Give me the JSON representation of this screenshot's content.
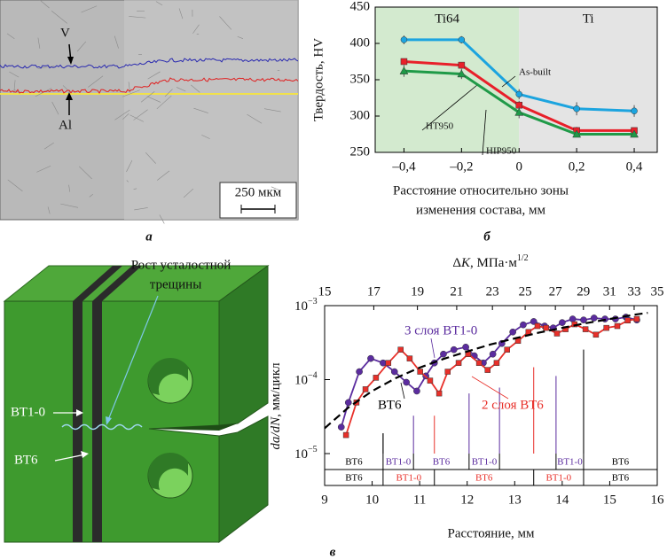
{
  "panels": {
    "captions": [
      "а",
      "б",
      "в"
    ]
  },
  "micrograph": {
    "labels": [
      "V",
      "Al"
    ],
    "scale_bar": "250 мкм"
  },
  "specimen": {
    "crack_label": [
      "Рост усталостной",
      "трещины"
    ],
    "labels": [
      "ВТ1-0",
      "ВТ6"
    ]
  },
  "chart_data": [
    {
      "type": "line",
      "y_label": "Твердость, HV",
      "x_label": [
        "Расстояние относительно зоны",
        "изменения состава, мм"
      ],
      "x": [
        -0.4,
        -0.2,
        0,
        0.2,
        0.4
      ],
      "series": [
        {
          "name": "As-built",
          "color": "#1ca4df",
          "marker": "circle",
          "values": [
            405,
            405,
            330,
            310,
            307
          ],
          "errors": [
            6,
            5,
            7,
            9,
            8
          ]
        },
        {
          "name": "HT950",
          "color": "#e8202a",
          "marker": "square",
          "values": [
            375,
            370,
            315,
            280,
            280
          ],
          "errors": [
            4,
            4,
            6,
            5,
            4
          ]
        },
        {
          "name": "HIP950",
          "color": "#1f9a48",
          "marker": "triangle",
          "values": [
            362,
            358,
            305,
            275,
            275
          ],
          "errors": [
            8,
            7,
            8,
            4,
            4
          ]
        }
      ],
      "regions": [
        {
          "label": "Ti64",
          "from": -0.5,
          "to": 0,
          "color": "#d3eacf"
        },
        {
          "label": "Ti",
          "from": 0,
          "to": 0.48,
          "color": "#e4e4e4"
        }
      ],
      "xlim": [
        -0.5,
        0.48
      ],
      "xticks": [
        {
          "value": -0.4,
          "label": "–0,4"
        },
        {
          "value": -0.2,
          "label": "–0,2"
        },
        0,
        {
          "value": 0.2,
          "label": "0,2"
        },
        {
          "value": 0.4,
          "label": "0,4"
        }
      ],
      "ylim": [
        250,
        450
      ],
      "yticks": [
        250,
        300,
        350,
        400,
        450
      ]
    },
    {
      "type": "line",
      "log_y": true,
      "x_label": "Расстояние, мм",
      "y_label": "da/dN, мм/цикл",
      "x2_label": "ΔK, МПа·м1/2",
      "xlim": [
        9,
        16
      ],
      "xticks": [
        9,
        10,
        11,
        12,
        13,
        14,
        15,
        16
      ],
      "ylim": [
        1e-05,
        0.001
      ],
      "yticks": [
        {
          "value": 1e-05,
          "label": "10−5"
        },
        {
          "value": 0.0001,
          "label": "10−4"
        },
        {
          "value": 0.001,
          "label": "10−3"
        }
      ],
      "x2lim": [
        15,
        35
      ],
      "x2log": true,
      "x2ticks": [
        15,
        17,
        19,
        21,
        23,
        25,
        27,
        29,
        31,
        33,
        35
      ],
      "series": [
        {
          "name": "3 слоя ВТ1-0",
          "color": "#5b2c9f",
          "marker": "circle",
          "x": [
            9.35,
            9.5,
            9.73,
            9.97,
            10.23,
            10.47,
            10.72,
            10.94,
            11.13,
            11.31,
            11.5,
            11.72,
            11.97,
            12.15,
            12.34,
            12.54,
            12.73,
            12.96,
            13.18,
            13.4,
            13.63,
            13.81,
            14.0,
            14.22,
            14.45,
            14.67,
            14.9,
            15.12,
            15.34,
            15.57
          ],
          "values": [
            2.28e-05,
            4.9e-05,
            0.000128,
            0.000193,
            0.000168,
            0.000128,
            9.2e-05,
            7e-05,
            0.000112,
            0.000168,
            0.000221,
            0.000254,
            0.000275,
            0.00021,
            0.000168,
            0.000221,
            0.000308,
            0.00044,
            0.00055,
            0.00061,
            0.00053,
            0.0005,
            0.00059,
            0.00066,
            0.00064,
            0.00068,
            0.00066,
            0.00066,
            0.0007,
            0.00064
          ]
        },
        {
          "name": "2 слоя ВТ6",
          "color": "#e8302a",
          "marker": "square",
          "x": [
            9.45,
            9.67,
            9.86,
            10.08,
            10.34,
            10.6,
            10.79,
            11.01,
            11.22,
            11.41,
            11.59,
            11.82,
            12.02,
            12.25,
            12.43,
            12.62,
            12.84,
            13.07,
            13.29,
            13.48,
            13.66,
            13.89,
            14.07,
            14.26,
            14.49,
            14.71,
            14.93,
            15.16,
            15.38,
            15.57
          ],
          "values": [
            1.78e-05,
            4.9e-05,
            7.4e-05,
            0.000106,
            0.000168,
            0.000254,
            0.000193,
            0.000128,
            9.7e-05,
            6.5e-05,
            0.000128,
            0.000168,
            0.000221,
            0.000168,
            0.000135,
            0.000168,
            0.000254,
            0.000334,
            0.00044,
            0.00053,
            0.0005,
            0.00042,
            0.00048,
            0.00056,
            0.00048,
            0.000405,
            0.0005,
            0.00053,
            0.00063,
            0.00066
          ]
        },
        {
          "name": "ВТ6",
          "color": "#000000",
          "dashed": true,
          "x": [
            9.0,
            9.5,
            10.0,
            10.5,
            11.0,
            11.5,
            12.0,
            12.5,
            13.0,
            13.5,
            14.0,
            14.5,
            15.0,
            15.5,
            15.8
          ],
          "values": [
            2.2e-05,
            4.2e-05,
            7e-05,
            0.000105,
            0.000145,
            0.00019,
            0.00024,
            0.0003,
            0.00036,
            0.00043,
            0.0005,
            0.00058,
            0.00066,
            0.00075,
            0.0008
          ]
        }
      ],
      "layers": [
        {
          "bounds": [
            10.23,
            10.87,
            12.04,
            12.68,
            13.87,
            14.45
          ],
          "bound_colors": [
            "#000000",
            "#5b2c9f",
            "#5b2c9f",
            "#5b2c9f",
            "#5b2c9f",
            "#000000"
          ],
          "bound_tops": [
            1.88e-05,
            3.25e-05,
            6.5e-05,
            7.8e-05,
            0.000112,
            0.000254
          ],
          "labels": [
            "ВТ6",
            "ВТ1-0",
            "ВТ6",
            "ВТ1-0",
            null,
            "ВТ1-0",
            "ВТ6"
          ],
          "label_colors": [
            "#000000",
            "#5b2c9f",
            "#5b2c9f",
            "#5b2c9f",
            null,
            "#5b2c9f",
            "#000000"
          ]
        },
        {
          "bounds": [
            10.23,
            11.31,
            13.4,
            14.45
          ],
          "bound_colors": [
            "#000000",
            "#e8302a",
            "#e8302a",
            "#000000"
          ],
          "bound_tops": [
            1.88e-05,
            3.25e-05,
            0.000147,
            0.000254
          ],
          "labels": [
            "ВТ6",
            "ВТ1-0",
            "ВТ6",
            "ВТ1-0",
            "ВТ6"
          ],
          "label_colors": [
            "#000000",
            "#e8302a",
            "#e8302a",
            "#e8302a",
            "#000000"
          ]
        }
      ]
    }
  ]
}
